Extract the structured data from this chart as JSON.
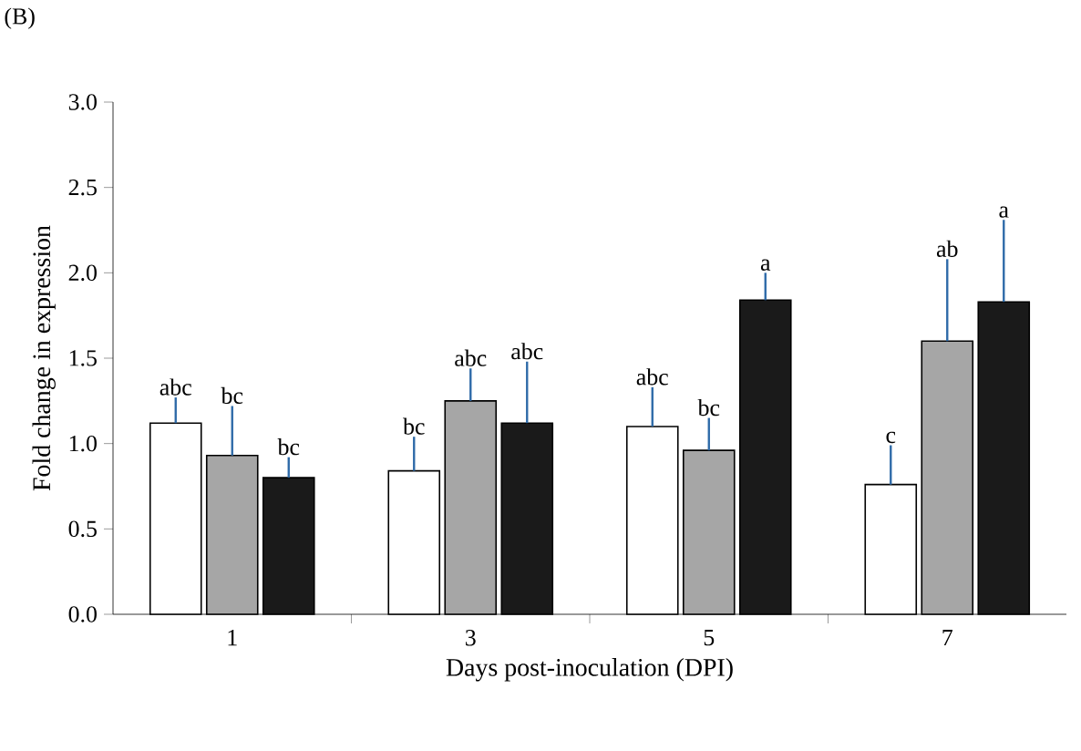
{
  "chart_data": {
    "type": "bar",
    "xlabel": "Days post-inoculation (DPI)",
    "ylabel": "Fold change in expression",
    "categories": [
      "1",
      "3",
      "5",
      "7"
    ],
    "series": [
      {
        "color": "#ffffff",
        "values": [
          1.12,
          0.84,
          1.1,
          0.76
        ],
        "errors": [
          [
            1.12,
            1.27
          ],
          [
            0.84,
            1.04
          ],
          [
            1.1,
            1.33
          ],
          [
            0.76,
            0.99
          ]
        ]
      },
      {
        "color": "#a6a6a6",
        "values": [
          0.93,
          1.25,
          0.96,
          1.6
        ],
        "errors": [
          [
            0.93,
            1.22
          ],
          [
            1.25,
            1.44
          ],
          [
            0.96,
            1.15
          ],
          [
            1.6,
            2.08
          ]
        ]
      },
      {
        "color": "#1a1a1a",
        "values": [
          0.8,
          1.12,
          1.84,
          1.83
        ],
        "errors": [
          [
            0.8,
            0.92
          ],
          [
            1.12,
            1.48
          ],
          [
            1.84,
            2.0
          ],
          [
            1.83,
            2.31
          ]
        ]
      }
    ],
    "ylim": [
      0,
      3
    ],
    "yticks": [
      {
        "value": 0,
        "label": "0.0"
      },
      {
        "value": 0.5,
        "label": "0.5"
      },
      {
        "value": 1,
        "label": "1.0"
      },
      {
        "value": 1.5,
        "label": "1.5"
      },
      {
        "value": 2,
        "label": "2.0"
      },
      {
        "value": 2.5,
        "label": "2.5"
      },
      {
        "value": 3,
        "label": "3.0"
      }
    ],
    "grid": false,
    "annotations": [
      "(B)",
      "abc",
      "bc",
      "bc",
      "bc",
      "abc",
      "abc",
      "abc",
      "bc",
      "a",
      "c",
      "ab",
      "a"
    ]
  }
}
